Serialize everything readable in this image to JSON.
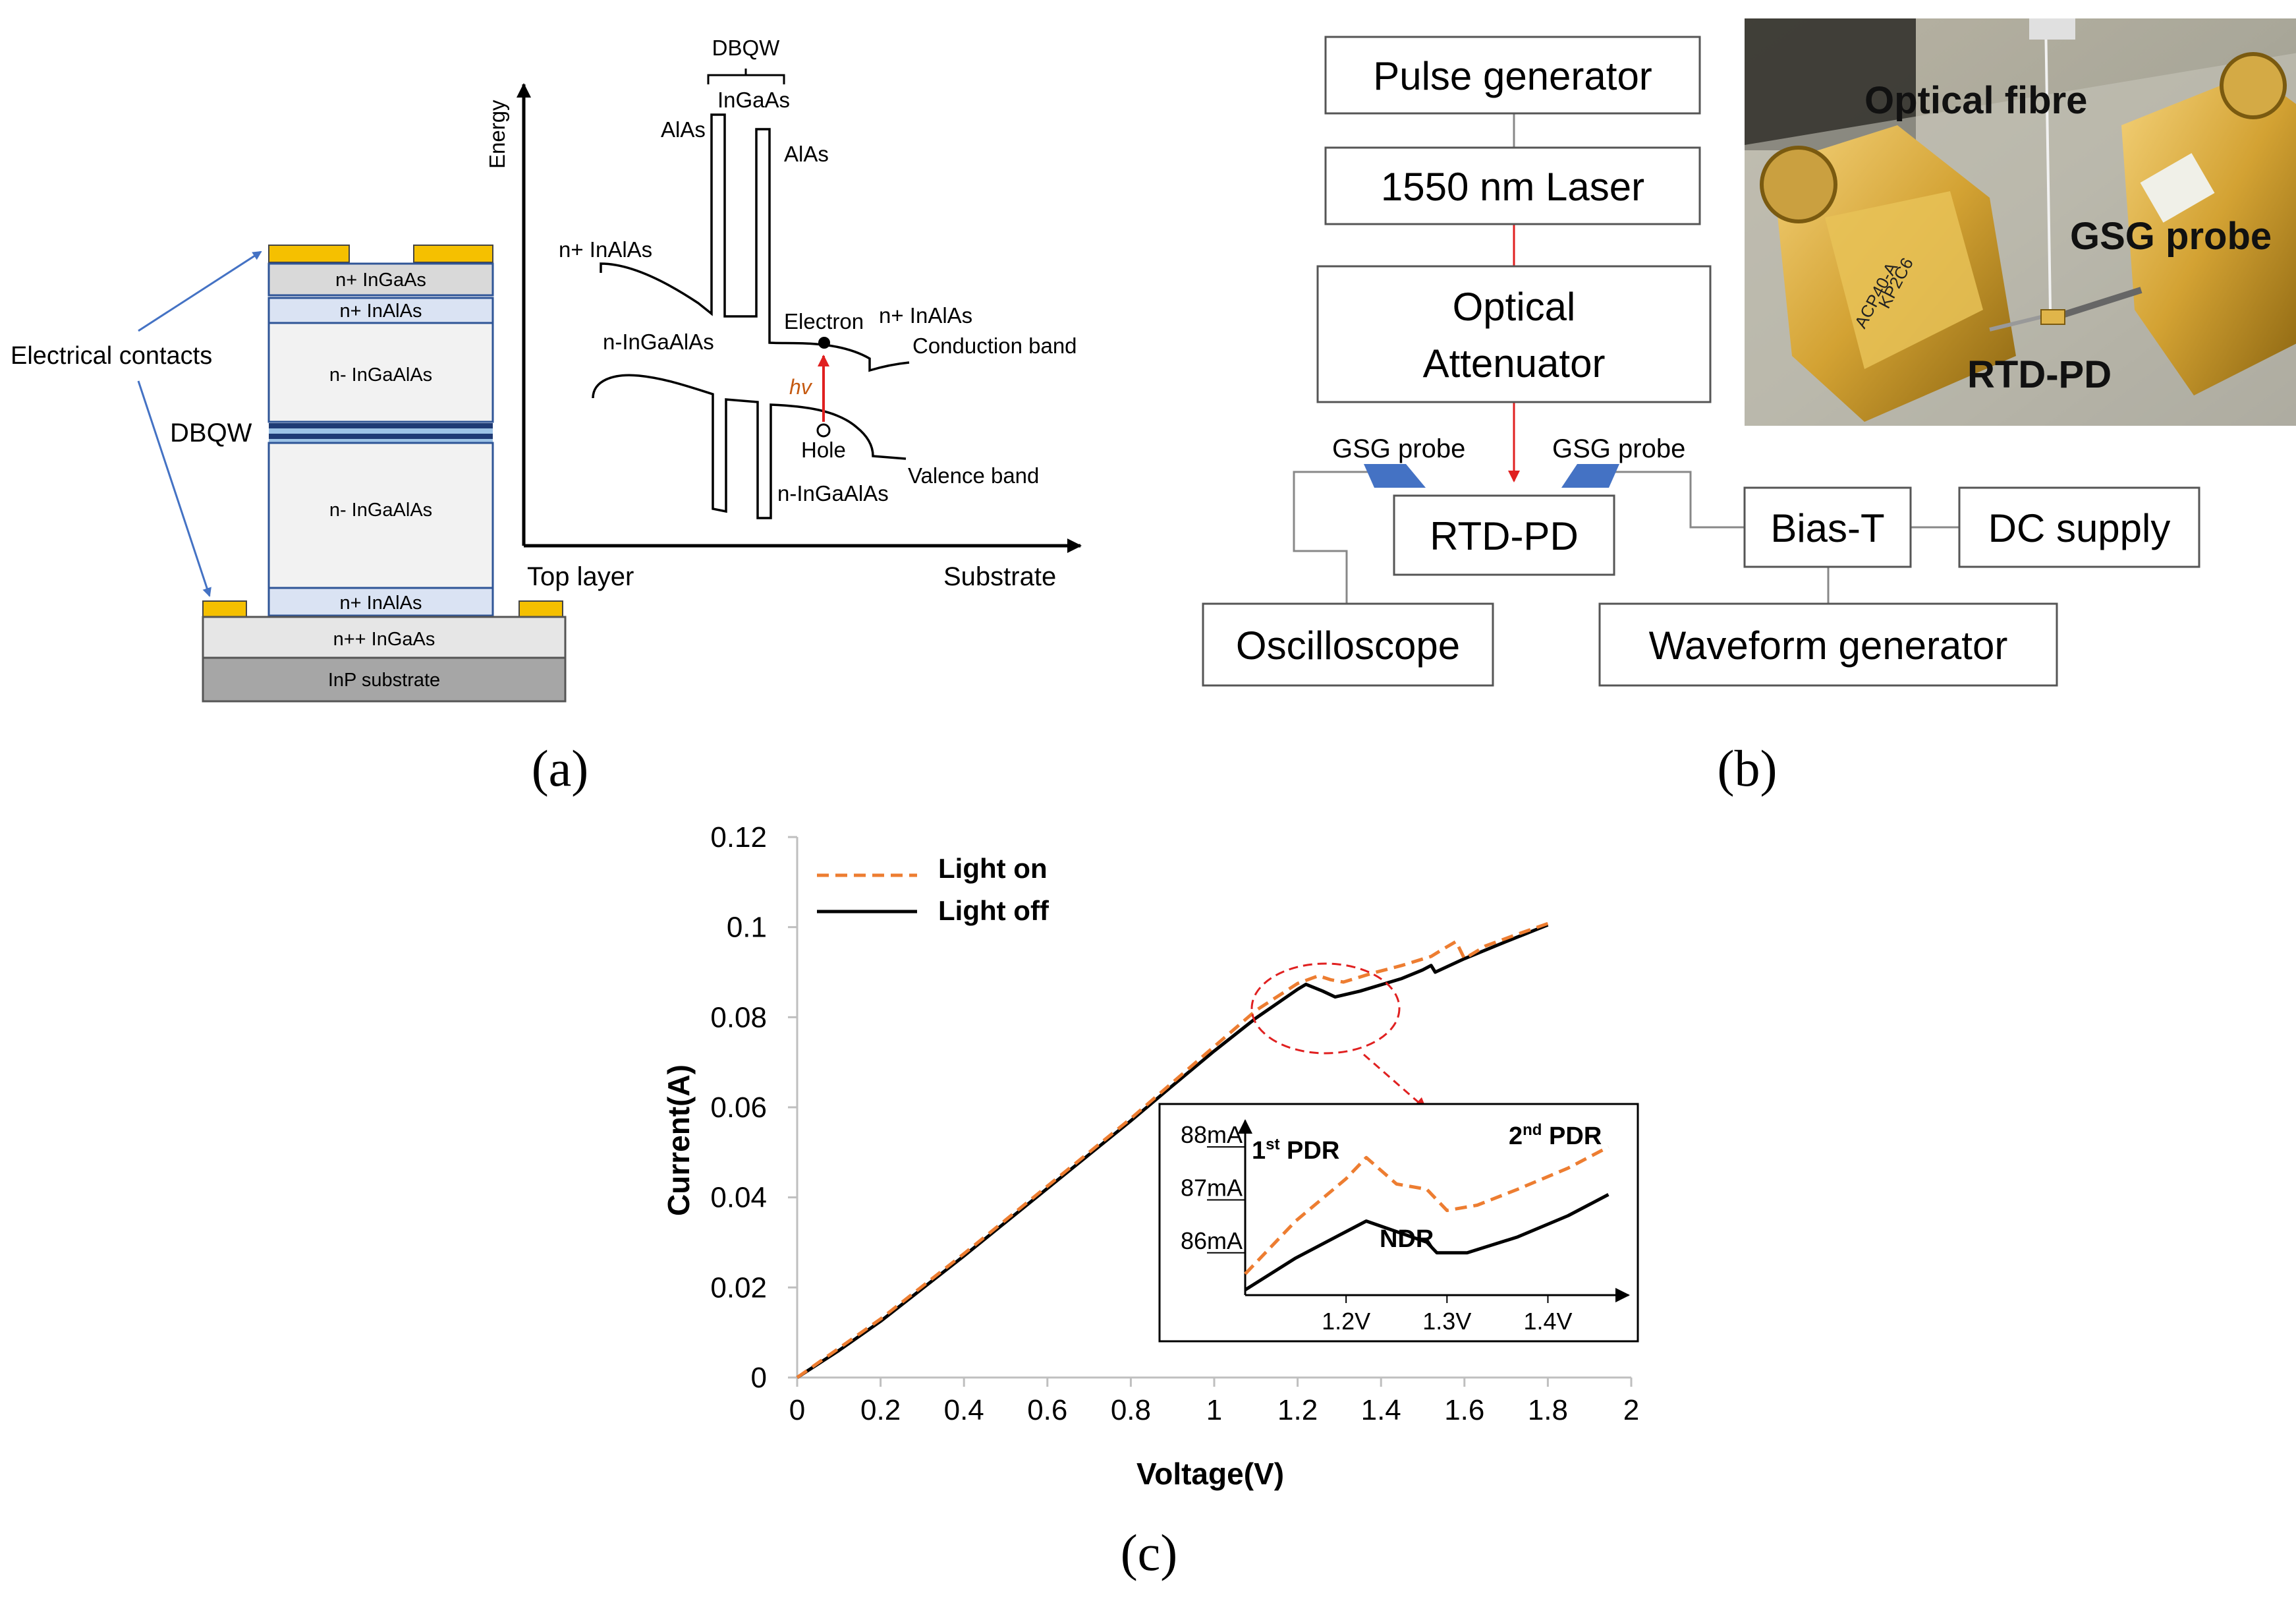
{
  "panel_a": {
    "label": "(a)",
    "layer_stack": {
      "electrical_contacts": "Electrical contacts",
      "dbqw": "DBQW",
      "layers": [
        "n+ InGaAs",
        "n+ InAlAs",
        "n- InGaAlAs",
        "n- InGaAlAs",
        "n+ InAlAs",
        "n++ InGaAs",
        "InP substrate"
      ]
    },
    "band_diagram": {
      "y_axis": "Energy",
      "x_left": "Top layer",
      "x_right": "Substrate",
      "dbqw": "DBQW",
      "well": "InGaAs",
      "barrier_left": "AlAs",
      "barrier_right": "AlAs",
      "left_contact": "n+ InAlAs",
      "left_absorber": "n-InGaAlAs",
      "right_contact": "n+ InAlAs",
      "right_absorber": "n-InGaAlAs",
      "electron": "Electron",
      "hole": "Hole",
      "photon": "hv",
      "conduction_band": "Conduction band",
      "valence_band": "Valence band"
    }
  },
  "panel_b": {
    "label": "(b)",
    "setup": {
      "pulse_generator": "Pulse generator",
      "laser": "1550 nm Laser",
      "attenuator_line1": "Optical",
      "attenuator_line2": "Attenuator",
      "rtd_pd": "RTD-PD",
      "gsg_left": "GSG probe",
      "gsg_right": "GSG probe",
      "bias_t": "Bias-T",
      "dc_supply": "DC supply",
      "oscilloscope": "Oscilloscope",
      "waveform_generator": "Waveform generator"
    },
    "photo": {
      "optical_fibre": "Optical fibre",
      "gsg_probe": "GSG probe",
      "rtd_pd": "RTD-PD",
      "probe_marking_1": "ACP40-A",
      "probe_marking_2": "KP2C6"
    }
  },
  "panel_c": {
    "label": "(c)"
  },
  "chart_data": [
    {
      "type": "line",
      "title": "",
      "xlabel": "Voltage(V)",
      "ylabel": "Current(A)",
      "xlim": [
        0,
        2
      ],
      "ylim": [
        0,
        0.12
      ],
      "x_ticks": [
        "0",
        "0.2",
        "0.4",
        "0.6",
        "0.8",
        "1",
        "1.2",
        "1.4",
        "1.6",
        "1.8",
        "2"
      ],
      "y_ticks": [
        "0",
        "0.02",
        "0.04",
        "0.06",
        "0.08",
        "0.1",
        "0.12"
      ],
      "legend": "top-left",
      "series": [
        {
          "name": "Light on",
          "color": "#ED7D31",
          "style": "dashed",
          "x": [
            0,
            0.1,
            0.2,
            0.4,
            0.6,
            0.8,
            0.9,
            1.0,
            1.1,
            1.2,
            1.25,
            1.28,
            1.31,
            1.38,
            1.45,
            1.52,
            1.55,
            1.58,
            1.6,
            1.65,
            1.72,
            1.8
          ],
          "y": [
            0,
            0.0065,
            0.013,
            0.0275,
            0.0425,
            0.0575,
            0.0655,
            0.0735,
            0.0815,
            0.0875,
            0.0892,
            0.0883,
            0.0878,
            0.0898,
            0.0915,
            0.0935,
            0.0952,
            0.0968,
            0.093,
            0.0958,
            0.0982,
            0.1008
          ]
        },
        {
          "name": "Light off",
          "color": "#000000",
          "style": "solid",
          "x": [
            0,
            0.1,
            0.2,
            0.4,
            0.6,
            0.8,
            0.9,
            1.0,
            1.1,
            1.2,
            1.22,
            1.26,
            1.29,
            1.35,
            1.4,
            1.45,
            1.5,
            1.52,
            1.53,
            1.6,
            1.7,
            1.8
          ],
          "y": [
            0,
            0.006,
            0.0125,
            0.027,
            0.042,
            0.057,
            0.0648,
            0.0725,
            0.0798,
            0.0862,
            0.0873,
            0.0858,
            0.0845,
            0.0858,
            0.0872,
            0.0886,
            0.0905,
            0.0915,
            0.09,
            0.093,
            0.0968,
            0.1005
          ]
        }
      ],
      "annotations": [
        "1st PDR",
        "2nd PDR",
        "NDR"
      ]
    },
    {
      "type": "line",
      "title": "inset",
      "x_ticks": [
        "1.2V",
        "1.3V",
        "1.4V"
      ],
      "y_ticks": [
        "86mA",
        "87mA",
        "88mA"
      ],
      "xlim": [
        1.1,
        1.48
      ],
      "ylim": [
        85.2,
        88.5
      ],
      "series": [
        {
          "name": "Light on",
          "color": "#ED7D31",
          "style": "dashed",
          "x": [
            1.1,
            1.15,
            1.2,
            1.22,
            1.25,
            1.28,
            1.3,
            1.33,
            1.37,
            1.42,
            1.46
          ],
          "y": [
            85.6,
            86.6,
            87.4,
            87.8,
            87.3,
            87.2,
            86.8,
            86.9,
            87.2,
            87.6,
            88.0
          ]
        },
        {
          "name": "Light off",
          "color": "#000000",
          "style": "solid",
          "x": [
            1.1,
            1.15,
            1.2,
            1.22,
            1.25,
            1.28,
            1.29,
            1.32,
            1.37,
            1.42,
            1.46
          ],
          "y": [
            85.3,
            85.9,
            86.4,
            86.6,
            86.4,
            86.2,
            86.0,
            86.0,
            86.3,
            86.7,
            87.1
          ]
        }
      ],
      "annotations": [
        "1st PDR",
        "2nd PDR",
        "NDR"
      ]
    }
  ],
  "colors": {
    "accent_orange": "#ED7D31",
    "arrow_red": "#E02020",
    "contact_gold": "#F5C000",
    "probe_blue": "#4472C4",
    "layer_border_blue": "#2F5597"
  }
}
